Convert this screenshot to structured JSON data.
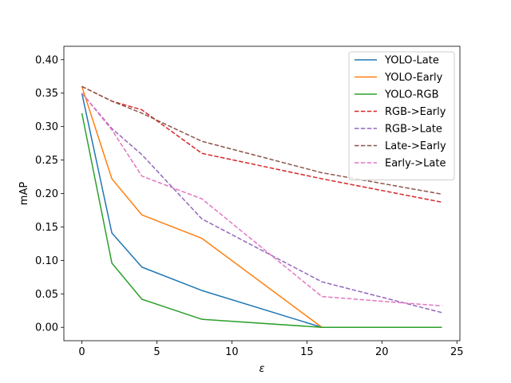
{
  "chart_data": {
    "type": "line",
    "title": "",
    "xlabel": "ε",
    "ylabel": "mAP",
    "xlim": [
      -1.2,
      25.2
    ],
    "ylim": [
      -0.02,
      0.42
    ],
    "x": [
      0,
      2,
      4,
      8,
      16,
      24
    ],
    "xticks": [
      0,
      5,
      10,
      15,
      20,
      25
    ],
    "xtick_labels": [
      "0",
      "5",
      "10",
      "15",
      "20",
      "25"
    ],
    "yticks": [
      0.0,
      0.05,
      0.1,
      0.15,
      0.2,
      0.25,
      0.3,
      0.35,
      0.4
    ],
    "ytick_labels": [
      "0.00",
      "0.05",
      "0.10",
      "0.15",
      "0.20",
      "0.25",
      "0.30",
      "0.35",
      "0.40"
    ],
    "grid": false,
    "legend_position": "top-right",
    "series": [
      {
        "name": "YOLO-Late",
        "color": "#1f77b4",
        "dash": "solid",
        "values": [
          0.35,
          0.141,
          0.09,
          0.055,
          0.0,
          0.0
        ]
      },
      {
        "name": "YOLO-Early",
        "color": "#ff7f0e",
        "dash": "solid",
        "values": [
          0.36,
          0.222,
          0.168,
          0.133,
          0.0,
          0.0
        ]
      },
      {
        "name": "YOLO-RGB",
        "color": "#2ca02c",
        "dash": "solid",
        "values": [
          0.32,
          0.096,
          0.042,
          0.012,
          0.0,
          0.0
        ]
      },
      {
        "name": "RGB->Early",
        "color": "#d62728",
        "dash": "dashed",
        "values": [
          0.36,
          0.338,
          0.325,
          0.26,
          0.222,
          0.187
        ]
      },
      {
        "name": "RGB->Late",
        "color": "#9467bd",
        "dash": "dashed",
        "values": [
          0.35,
          0.297,
          0.258,
          0.162,
          0.068,
          0.022
        ]
      },
      {
        "name": "Late->Early",
        "color": "#8c564b",
        "dash": "dashed",
        "values": [
          0.36,
          0.338,
          0.32,
          0.278,
          0.231,
          0.199
        ]
      },
      {
        "name": "Early->Late",
        "color": "#e377c2",
        "dash": "dashed",
        "values": [
          0.35,
          0.295,
          0.226,
          0.192,
          0.046,
          0.032
        ]
      }
    ]
  }
}
